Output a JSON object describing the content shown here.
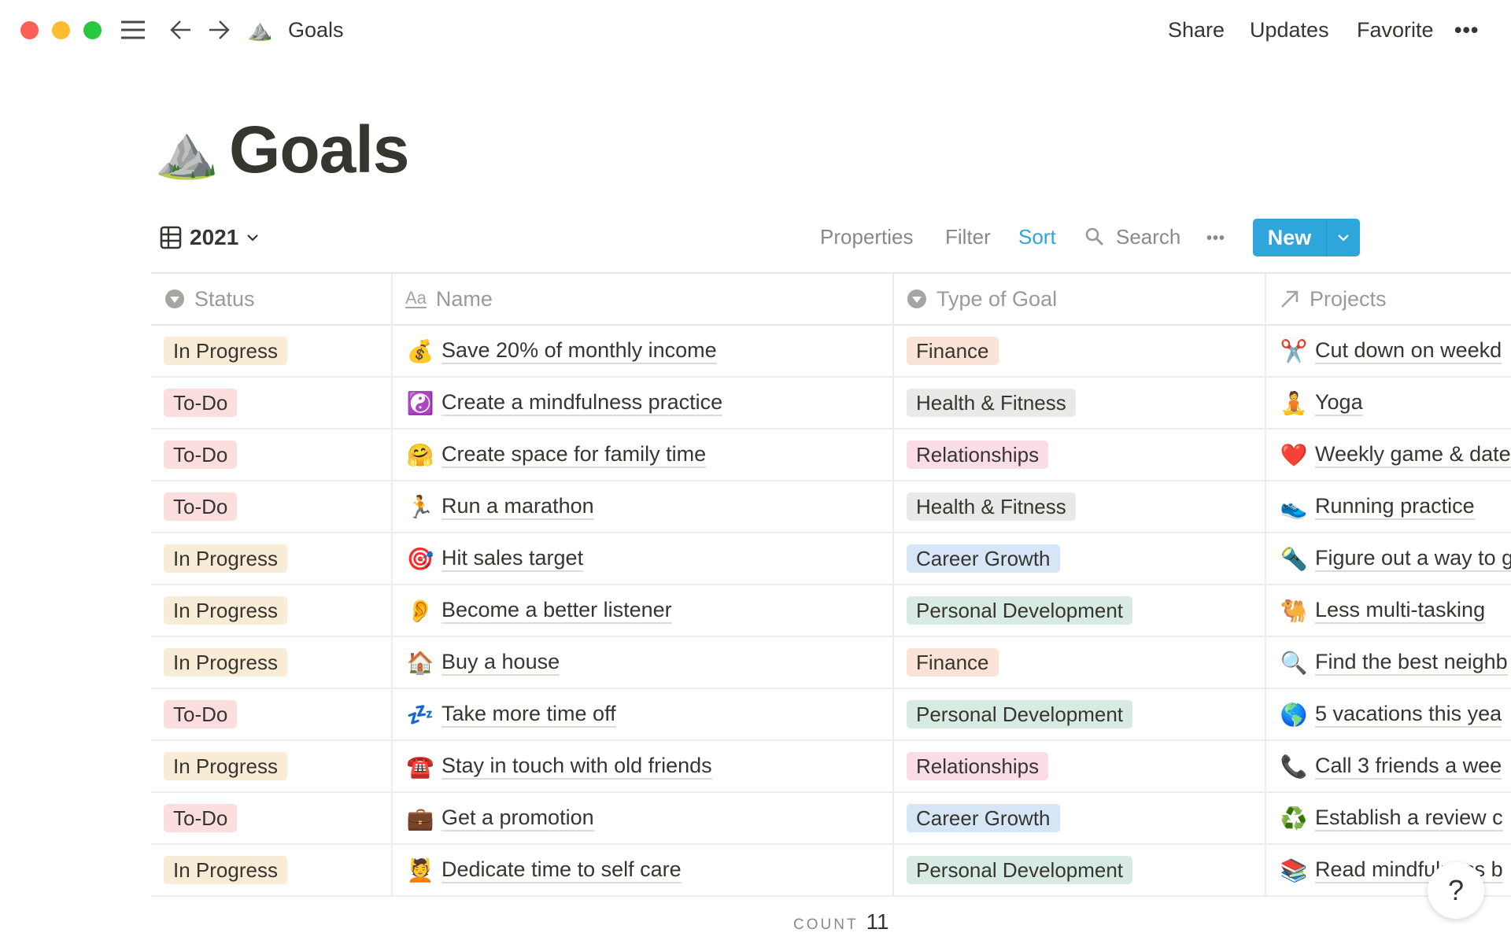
{
  "window": {
    "controls": {
      "close_color": "#fe5f57",
      "minimize_color": "#febc2e",
      "maximize_color": "#28c840"
    },
    "breadcrumb": {
      "icon": "⛰️",
      "title": "Goals"
    },
    "actions": {
      "share": "Share",
      "updates": "Updates",
      "favorite": "Favorite",
      "more": "•••"
    }
  },
  "page": {
    "icon": "⛰️",
    "title": "Goals"
  },
  "view": {
    "name": "2021",
    "toolbar": {
      "properties": "Properties",
      "filter": "Filter",
      "sort": "Sort",
      "search": "Search",
      "more": "•••",
      "new": "New"
    },
    "accent_color": "#2ea5db"
  },
  "table": {
    "columns": [
      {
        "label": "Status",
        "icon": "select-icon"
      },
      {
        "label": "Name",
        "icon": "text-icon"
      },
      {
        "label": "Type of Goal",
        "icon": "select-icon"
      },
      {
        "label": "Projects",
        "icon": "relation-arrow-icon"
      }
    ],
    "status_colors": {
      "In Progress": "#f8ecd7",
      "To-Do": "#fddede"
    },
    "type_colors": {
      "Finance": "#fce3d7",
      "Health & Fitness": "#e9e9e7",
      "Relationships": "#fbdde8",
      "Career Growth": "#d6e6f7",
      "Personal Development": "#d8ebe3"
    },
    "rows": [
      {
        "status": "In Progress",
        "name_icon": "💰",
        "name": "Save 20% of monthly income",
        "type": "Finance",
        "project_icon": "✂️",
        "project": "Cut down on weekd"
      },
      {
        "status": "To-Do",
        "name_icon": "☯️",
        "name": "Create a mindfulness practice",
        "type": "Health & Fitness",
        "project_icon": "🧘",
        "project": "Yoga"
      },
      {
        "status": "To-Do",
        "name_icon": "🤗",
        "name": "Create space for family time",
        "type": "Relationships",
        "project_icon": "❤️",
        "project": "Weekly game & date"
      },
      {
        "status": "To-Do",
        "name_icon": "🏃",
        "name": "Run a marathon",
        "type": "Health & Fitness",
        "project_icon": "👟",
        "project": "Running practice"
      },
      {
        "status": "In Progress",
        "name_icon": "🎯",
        "name": "Hit sales target",
        "type": "Career Growth",
        "project_icon": "🔦",
        "project": "Figure out a way to g"
      },
      {
        "status": "In Progress",
        "name_icon": "👂",
        "name": "Become a better listener",
        "type": "Personal Development",
        "project_icon": "🐫",
        "project": "Less multi-tasking"
      },
      {
        "status": "In Progress",
        "name_icon": "🏠",
        "name": "Buy a house",
        "type": "Finance",
        "project_icon": "🔍",
        "project": "Find the best neighb"
      },
      {
        "status": "To-Do",
        "name_icon": "💤",
        "name": "Take more time off",
        "type": "Personal Development",
        "project_icon": "🌎",
        "project": "5 vacations this yea"
      },
      {
        "status": "In Progress",
        "name_icon": "☎️",
        "name": "Stay in touch with old friends",
        "type": "Relationships",
        "project_icon": "📞",
        "project": "Call 3 friends a wee"
      },
      {
        "status": "To-Do",
        "name_icon": "💼",
        "name": "Get a promotion",
        "type": "Career Growth",
        "project_icon": "♻️",
        "project": "Establish a review c"
      },
      {
        "status": "In Progress",
        "name_icon": "💆",
        "name": "Dedicate time to self care",
        "type": "Personal Development",
        "project_icon": "📚",
        "project": "Read mindfulness b"
      }
    ],
    "footer": {
      "count_label": "COUNT",
      "count_value": "11"
    }
  },
  "help": {
    "label": "?"
  }
}
